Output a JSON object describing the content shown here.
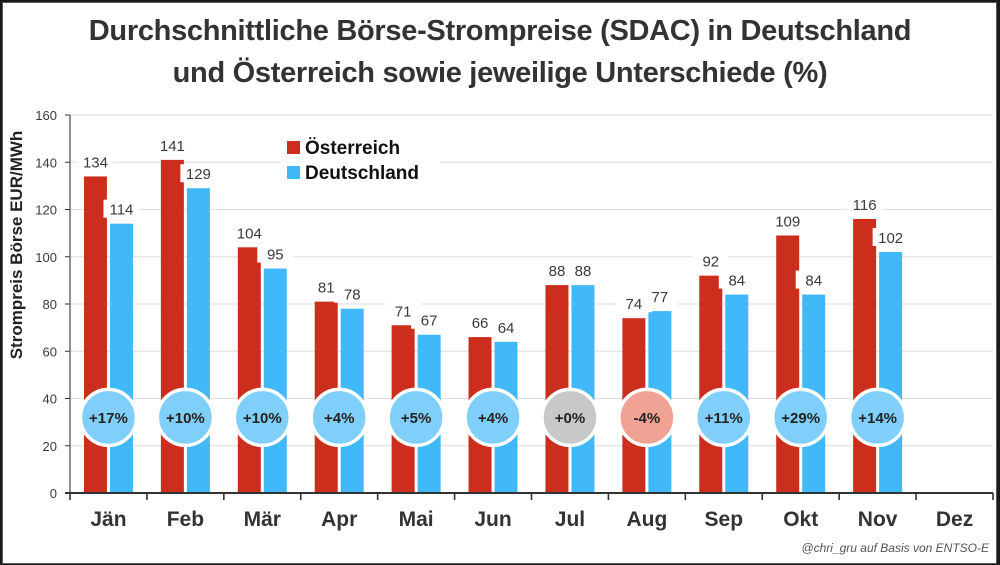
{
  "chart_data": {
    "type": "bar",
    "title_lines": [
      "Durchschnittliche Börse-Strompreise (SDAC) in Deutschland",
      "und Österreich sowie jeweilige Unterschiede (%)"
    ],
    "xlabel": "",
    "ylabel": "Strompreis Börse EUR/MWh",
    "ylim": [
      0,
      160
    ],
    "yticks": [
      0,
      20,
      40,
      60,
      80,
      100,
      120,
      140,
      160
    ],
    "grid": true,
    "legend_position": "top-center",
    "categories": [
      "Jän",
      "Feb",
      "Mär",
      "Apr",
      "Mai",
      "Jun",
      "Jul",
      "Aug",
      "Sep",
      "Okt",
      "Nov",
      "Dez"
    ],
    "series": [
      {
        "name": "Österreich",
        "color": "#cc2e1d",
        "values": [
          134,
          141,
          104,
          81,
          71,
          66,
          88,
          74,
          92,
          109,
          116,
          null
        ]
      },
      {
        "name": "Deutschland",
        "color": "#41b8f8",
        "values": [
          114,
          129,
          95,
          78,
          67,
          64,
          88,
          77,
          84,
          84,
          102,
          null
        ]
      }
    ],
    "differences": {
      "labels": [
        "+17%",
        "+10%",
        "+10%",
        "+4%",
        "+5%",
        "+4%",
        "+0%",
        "-4%",
        "+11%",
        "+29%",
        "+14%",
        null
      ],
      "colors": {
        "positive": "#80cffb",
        "zero": "#c8c8c8",
        "negative": "#f0a394"
      },
      "position_value": 32
    },
    "annotations": [
      "@chri_gru auf Basis von ENTSO-E"
    ]
  }
}
